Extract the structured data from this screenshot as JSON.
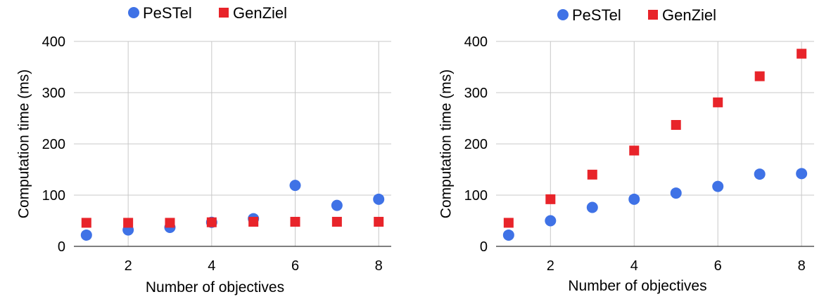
{
  "chart_data": [
    {
      "type": "scatter",
      "title": "",
      "xlabel": "Number of objectives",
      "ylabel": "Computation time (ms)",
      "xlim": [
        0.7,
        8.3
      ],
      "ylim": [
        0,
        400
      ],
      "xticks": [
        2,
        4,
        6,
        8
      ],
      "yticks": [
        0,
        100,
        200,
        300,
        400
      ],
      "grid": true,
      "legend_position": "top",
      "series": [
        {
          "name": "PeSTel",
          "marker": "circle",
          "color": "#3f72e6",
          "x": [
            1,
            2,
            3,
            4,
            5,
            6,
            7,
            8
          ],
          "y": [
            22,
            32,
            37,
            47,
            54,
            119,
            80,
            92
          ]
        },
        {
          "name": "GenZiel",
          "marker": "square",
          "color": "#e8242a",
          "x": [
            1,
            2,
            3,
            4,
            5,
            6,
            7,
            8
          ],
          "y": [
            46,
            46,
            46,
            47,
            48,
            48,
            48,
            48
          ]
        }
      ]
    },
    {
      "type": "scatter",
      "title": "",
      "xlabel": "Number of objectives",
      "ylabel": "Computation time (ms)",
      "xlim": [
        0.7,
        8.3
      ],
      "ylim": [
        0,
        400
      ],
      "xticks": [
        2,
        4,
        6,
        8
      ],
      "yticks": [
        0,
        100,
        200,
        300,
        400
      ],
      "grid": true,
      "legend_position": "top",
      "series": [
        {
          "name": "PeSTel",
          "marker": "circle",
          "color": "#3f72e6",
          "x": [
            1,
            2,
            3,
            4,
            5,
            6,
            7,
            8
          ],
          "y": [
            22,
            50,
            76,
            92,
            104,
            117,
            141,
            142
          ]
        },
        {
          "name": "GenZiel",
          "marker": "square",
          "color": "#e8242a",
          "x": [
            1,
            2,
            3,
            4,
            5,
            6,
            7,
            8
          ],
          "y": [
            46,
            92,
            140,
            187,
            237,
            281,
            332,
            376
          ]
        }
      ]
    }
  ]
}
